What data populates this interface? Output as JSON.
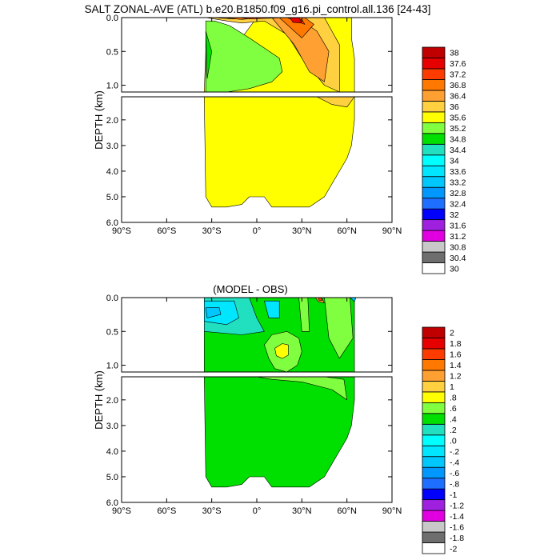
{
  "figure_title": "SALT ZONAL-AVE (ATL) b.e20.B1850.f09_g16.pi_control.all.136 [24-43]",
  "chart_data": [
    {
      "type": "contour",
      "title": "SALT ZONAL-AVE (ATL) b.e20.B1850.f09_g16.pi_control.all.136 [24-43]",
      "ylabel": "DEPTH (km)",
      "xlim": [
        -90,
        90
      ],
      "upper_ylim": [
        1.1,
        0.0
      ],
      "lower_ylim": [
        6.0,
        1.1
      ],
      "x_ticks": [
        "90°S",
        "60°S",
        "30°S",
        "0°",
        "30°N",
        "60°N",
        "90°N"
      ],
      "y_ticks_upper": [
        "0.0",
        "0.5",
        "1.0"
      ],
      "y_ticks_lower": [
        "2.0",
        "3.0",
        "4.0",
        "5.0",
        "6.0"
      ],
      "colorbar": {
        "levels": [
          "38",
          "37.6",
          "37.2",
          "36.8",
          "36.4",
          "36",
          "35.6",
          "35.2",
          "34.8",
          "34.4",
          "34",
          "33.6",
          "33.2",
          "32.8",
          "32.4",
          "32",
          "31.6",
          "31.2",
          "30.8",
          "30.4",
          "30"
        ],
        "colors": [
          "#ffffff",
          "#6e6e6e",
          "#c8c8c8",
          "#e000e0",
          "#a020e0",
          "#0000ff",
          "#1e6eff",
          "#0098ff",
          "#00c8ff",
          "#00e6ff",
          "#00ffff",
          "#20e0c0",
          "#00e000",
          "#80ff40",
          "#ffff00",
          "#ffd040",
          "#ffa032",
          "#ff7800",
          "#ff3c00",
          "#e60000",
          "#c00000"
        ]
      },
      "regions_upper": [
        {
          "value": 35.0,
          "color": "#ffff00",
          "lat": [
            -35,
            -34,
            -10,
            0,
            20,
            35,
            45,
            55,
            63,
            63,
            65,
            65,
            -35
          ],
          "z": [
            1.1,
            0.5,
            0.3,
            0.0,
            0.0,
            0.0,
            0.0,
            0.0,
            0.0,
            0.3,
            0.6,
            1.1,
            1.1
          ]
        },
        {
          "value": 34.6,
          "color": "#80ff40",
          "lat": [
            -34,
            -28,
            -18,
            -5,
            5,
            15,
            17,
            10,
            -5,
            -20,
            -34
          ],
          "z": [
            0.05,
            0.05,
            0.12,
            0.3,
            0.45,
            0.6,
            0.8,
            0.95,
            1.05,
            1.1,
            1.1
          ]
        },
        {
          "value": 34.4,
          "color": "#00e000",
          "lat": [
            -34,
            -30,
            -33
          ],
          "z": [
            0.2,
            0.5,
            0.9
          ]
        },
        {
          "value": 35.5,
          "color": "#ffd040",
          "lat": [
            -34,
            -20,
            -10,
            5,
            20,
            30,
            45,
            55,
            55,
            50,
            45
          ],
          "z": [
            0.0,
            0.05,
            0.08,
            0.05,
            0.25,
            0.6,
            1.0,
            1.1,
            0.4,
            0.2,
            0.0
          ]
        },
        {
          "value": 35.8,
          "color": "#ffa032",
          "lat": [
            -30,
            -15,
            0,
            10,
            25,
            35,
            45,
            48,
            40,
            30,
            20
          ],
          "z": [
            0.0,
            0.02,
            0.0,
            0.0,
            0.4,
            0.8,
            0.95,
            0.5,
            0.2,
            0.05,
            0.0
          ]
        },
        {
          "value": 36.2,
          "color": "#ff7800",
          "lat": [
            -22,
            -10,
            0,
            15,
            30,
            38,
            32,
            20
          ],
          "z": [
            0.0,
            0.03,
            0.0,
            0.0,
            0.3,
            0.1,
            0.0,
            0.0
          ]
        },
        {
          "value": 36.8,
          "color": "#ff3c00",
          "lat": [
            -12,
            -5,
            20,
            32,
            30,
            22
          ],
          "z": [
            0.0,
            0.02,
            0.0,
            0.1,
            0.03,
            0.0
          ]
        },
        {
          "value": 37.2,
          "color": "#e60000",
          "lat": [
            22,
            24,
            30,
            28
          ],
          "z": [
            0.0,
            0.07,
            0.08,
            0.0
          ]
        }
      ],
      "regions_lower": [
        {
          "value": 35.0,
          "color": "#ffff00",
          "lat": [
            -35,
            65,
            65,
            63,
            60,
            55,
            50,
            45,
            40,
            35,
            30,
            20,
            10,
            5,
            -5,
            -10,
            -20,
            -30,
            -34,
            -35
          ],
          "z": [
            1.1,
            1.1,
            2.0,
            3.0,
            3.5,
            4.0,
            4.5,
            5.0,
            5.2,
            5.4,
            5.4,
            5.4,
            5.4,
            5.0,
            5.0,
            5.3,
            5.4,
            5.4,
            5.0,
            1.1
          ]
        },
        {
          "value": 35.3,
          "color": "#ffd040",
          "lat": [
            40,
            50,
            60,
            65,
            55
          ],
          "z": [
            1.1,
            1.4,
            1.5,
            1.1,
            1.1
          ]
        }
      ]
    },
    {
      "type": "contour",
      "title": "(MODEL - OBS)",
      "ylabel": "DEPTH (km)",
      "xlim": [
        -90,
        90
      ],
      "upper_ylim": [
        1.1,
        0.0
      ],
      "lower_ylim": [
        6.0,
        1.1
      ],
      "x_ticks": [
        "90°S",
        "60°S",
        "30°S",
        "0°",
        "30°N",
        "60°N",
        "90°N"
      ],
      "y_ticks_upper": [
        "0.0",
        "0.5",
        "1.0"
      ],
      "y_ticks_lower": [
        "2.0",
        "3.0",
        "4.0",
        "5.0",
        "6.0"
      ],
      "colorbar": {
        "levels": [
          "2",
          "1.8",
          "1.6",
          "1.4",
          "1.2",
          "1",
          ".8",
          ".6",
          ".4",
          ".2",
          ".0",
          "-.2",
          "-.4",
          "-.6",
          "-.8",
          "-1",
          "-1.2",
          "-1.4",
          "-1.6",
          "-1.8",
          "-2"
        ],
        "colors": [
          "#ffffff",
          "#6e6e6e",
          "#c8c8c8",
          "#e000e0",
          "#a020e0",
          "#0000ff",
          "#1e6eff",
          "#0098ff",
          "#00c8ff",
          "#00e6ff",
          "#00ffff",
          "#20e0c0",
          "#00e000",
          "#80ff40",
          "#ffff00",
          "#ffd040",
          "#ffa032",
          "#ff7800",
          "#ff3c00",
          "#e60000",
          "#c00000"
        ]
      },
      "regions_upper": [
        {
          "value": 0.1,
          "color": "#00e000",
          "lat": [
            -35,
            65,
            65,
            -35
          ],
          "z": [
            0.0,
            0.0,
            1.1,
            1.1
          ]
        },
        {
          "value": 0.3,
          "color": "#80ff40",
          "lat": [
            5,
            10,
            20,
            28,
            30,
            27,
            20,
            12,
            8
          ],
          "z": [
            0.7,
            0.55,
            0.5,
            0.6,
            0.8,
            1.0,
            1.1,
            1.05,
            0.9
          ]
        },
        {
          "value": 0.5,
          "color": "#ffff00",
          "lat": [
            12,
            17,
            21,
            21,
            17,
            13
          ],
          "z": [
            0.75,
            0.68,
            0.7,
            0.85,
            0.9,
            0.86
          ]
        },
        {
          "value": -0.1,
          "color": "#20e0c0",
          "lat": [
            -35,
            -5,
            0,
            5,
            -10,
            -35
          ],
          "z": [
            0.0,
            0.0,
            0.3,
            0.5,
            0.55,
            0.5
          ]
        },
        {
          "value": -0.3,
          "color": "#00e6ff",
          "lat": [
            -35,
            -15,
            -12,
            -20,
            -35
          ],
          "z": [
            0.05,
            0.05,
            0.3,
            0.4,
            0.35
          ]
        },
        {
          "value": -0.5,
          "color": "#00c8ff",
          "lat": [
            -34,
            -25,
            -24,
            -33
          ],
          "z": [
            0.15,
            0.15,
            0.25,
            0.3
          ]
        },
        {
          "value": -0.3,
          "color": "#00e6ff",
          "lat": [
            5,
            15,
            15,
            8
          ],
          "z": [
            0.05,
            0.05,
            0.3,
            0.3
          ]
        },
        {
          "value": 0.3,
          "color": "#80ff40",
          "lat": [
            28,
            34,
            35,
            30
          ],
          "z": [
            0.0,
            0.0,
            0.5,
            0.5
          ]
        },
        {
          "value": 0.3,
          "color": "#80ff40",
          "lat": [
            45,
            62,
            64,
            55,
            48
          ],
          "z": [
            0.0,
            0.0,
            0.6,
            0.9,
            0.6
          ]
        },
        {
          "value": 1.0,
          "color": "#ffa032",
          "lat": [
            39,
            43,
            45,
            41
          ],
          "z": [
            0.0,
            0.0,
            0.08,
            0.06
          ]
        },
        {
          "value": 1.5,
          "color": "#ff3c00",
          "lat": [
            41,
            43,
            43.5,
            41.5
          ],
          "z": [
            0.0,
            0.0,
            0.04,
            0.04
          ]
        },
        {
          "value": -0.5,
          "color": "#00c8ff",
          "lat": [
            62,
            66,
            65
          ],
          "z": [
            0.0,
            0.0,
            0.06
          ]
        }
      ],
      "regions_lower": [
        {
          "value": 0.1,
          "color": "#00e000",
          "lat": [
            -35,
            65,
            65,
            63,
            60,
            55,
            50,
            45,
            40,
            35,
            30,
            20,
            10,
            5,
            -5,
            -10,
            -20,
            -30,
            -34,
            -35
          ],
          "z": [
            1.1,
            1.1,
            2.0,
            3.0,
            3.5,
            4.0,
            4.5,
            5.0,
            5.2,
            5.4,
            5.4,
            5.4,
            5.4,
            5.0,
            5.0,
            5.3,
            5.4,
            5.4,
            5.0,
            1.1
          ]
        },
        {
          "value": 0.3,
          "color": "#80ff40",
          "lat": [
            0,
            20,
            45,
            58,
            60,
            50,
            30,
            10
          ],
          "z": [
            1.1,
            1.1,
            1.1,
            1.2,
            2.0,
            1.6,
            1.3,
            1.2
          ]
        }
      ]
    }
  ]
}
